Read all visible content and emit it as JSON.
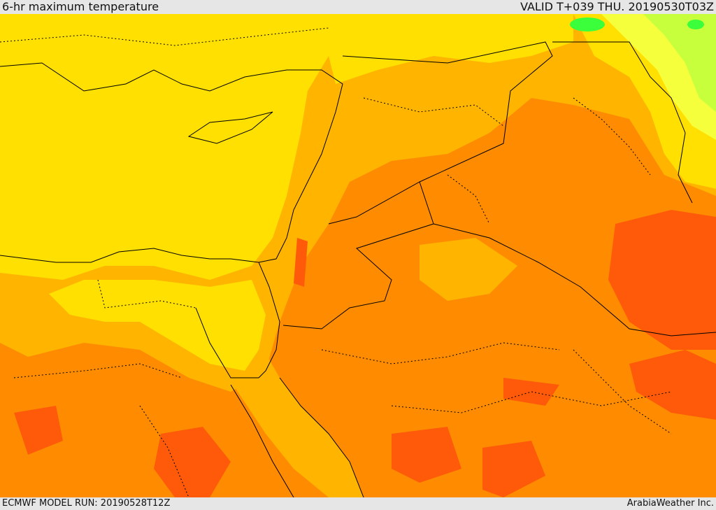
{
  "header": {
    "title": "6-hr maximum temperature",
    "valid_label": "VALID T+039 THU. 20190530T03Z"
  },
  "footer": {
    "model_run": "ECMWF MODEL RUN: 20190528T12Z",
    "credit": "ArabiaWeather Inc."
  },
  "map": {
    "colors": {
      "warm_yellow": "#ffe000",
      "gold": "#ffb400",
      "orange": "#ff8c00",
      "red_orange": "#ff5a0a",
      "pale_yellow": "#f5ff3c",
      "yellow_green": "#c8ff3c",
      "green": "#3cff3c",
      "border": "#000000"
    }
  }
}
